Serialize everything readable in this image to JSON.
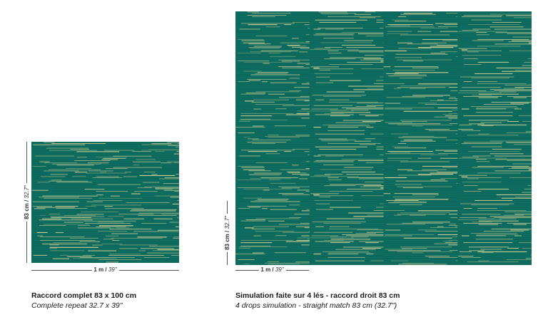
{
  "colors": {
    "background": "#0f6f62",
    "stripe_light": "#e6dfa0",
    "stripe_dark": "#0a4f46"
  },
  "small_panel": {
    "height_dim": {
      "metric": "83 cm",
      "sep": " / ",
      "imperial": "32.7\""
    },
    "width_dim": {
      "metric": "1 m",
      "sep": " / ",
      "imperial": "39\""
    },
    "caption_title": "Raccord complet 83 x 100 cm",
    "caption_subtitle": "Complete repeat 32.7 x 39\""
  },
  "large_panel": {
    "height_dim": {
      "metric": "83 cm",
      "sep": " / ",
      "imperial": "32.7\""
    },
    "width_dim": {
      "metric": "1 m",
      "sep": " / ",
      "imperial": "39\""
    },
    "caption_title": "Simulation faite sur 4 lés - raccord droit 83 cm",
    "caption_subtitle": "4 drops simulation - straight match 83 cm (32.7\")"
  }
}
